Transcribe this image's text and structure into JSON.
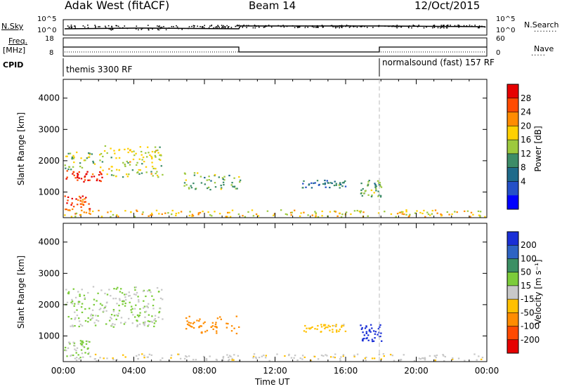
{
  "header": {
    "station": "Adak West (fitACF)",
    "beam": "Beam 14",
    "date": "12/Oct/2015"
  },
  "panels": {
    "nsky": {
      "left_label": "N.Sky",
      "left_top": "10^5",
      "left_bottom": "10^0",
      "right_top": "10^5",
      "right_bottom": "10^0",
      "right_label": "N.Search"
    },
    "freq": {
      "label_top": "Freq.",
      "label_unit": "[MHz]",
      "left_top": "18",
      "left_bottom": "8",
      "right_top": "60",
      "right_bottom": "0",
      "right_label": "Nave"
    },
    "cpid": {
      "label": "CPID",
      "mode1": "themis 3300 RF",
      "mode2": "normalsound (fast) 157 RF"
    }
  },
  "colorbars": {
    "power": {
      "label": "Power [dB]",
      "ticks": [
        "28",
        "24",
        "20",
        "16",
        "12",
        "8",
        "4"
      ],
      "colors": [
        "#e60000",
        "#ff4a00",
        "#ff8c00",
        "#ffd000",
        "#9dc93e",
        "#3d8c68",
        "#1e6a8a",
        "#2450c8",
        "#0000ff"
      ]
    },
    "velocity": {
      "label": "Velocity [m s⁻¹]",
      "ticks": [
        "200",
        "100",
        "50",
        "15",
        "-15",
        "-50",
        "-100",
        "-200"
      ],
      "colors": [
        "#1a2fd6",
        "#2e64c4",
        "#3c8f64",
        "#7ccc3a",
        "#c8c8c8",
        "#ffc000",
        "#ff8c00",
        "#ff4a00",
        "#e60000"
      ]
    }
  },
  "chart_data": [
    {
      "type": "heatmap",
      "name": "power",
      "ylabel": "Slant Range [km]",
      "yticks": [
        "4000",
        "3000",
        "2000",
        "1000"
      ],
      "ylim": [
        180,
        4600
      ],
      "xlim": [
        0,
        24
      ],
      "xticks_hours": [
        0,
        4,
        8,
        12,
        16,
        20,
        24
      ],
      "regions": [
        {
          "t0": 0.0,
          "t1": 2.3,
          "r0": 1350,
          "r1": 1700,
          "v": 28
        },
        {
          "t0": 0.0,
          "t1": 2.3,
          "r0": 1700,
          "r1": 2300,
          "v": 14
        },
        {
          "t0": 2.3,
          "t1": 5.6,
          "r0": 1500,
          "r1": 2500,
          "v": 16
        },
        {
          "t0": 0.0,
          "t1": 1.5,
          "r0": 300,
          "r1": 900,
          "v": 26
        },
        {
          "t0": 6.8,
          "t1": 10.0,
          "r0": 1100,
          "r1": 1650,
          "v": 12
        },
        {
          "t0": 13.5,
          "t1": 16.0,
          "r0": 1150,
          "r1": 1400,
          "v": 8
        },
        {
          "t0": 16.8,
          "t1": 18.0,
          "r0": 850,
          "r1": 1400,
          "v": 12
        },
        {
          "t0": 0.0,
          "t1": 24.0,
          "r0": 180,
          "r1": 450,
          "v": 18
        }
      ]
    },
    {
      "type": "heatmap",
      "name": "velocity",
      "ylabel": "Slant Range [km]",
      "yticks": [
        "4000",
        "3000",
        "2000",
        "1000"
      ],
      "ylim": [
        180,
        4600
      ],
      "xlim": [
        0,
        24
      ],
      "xlabel": "Time UT",
      "xticks": [
        "00:00",
        "04:00",
        "08:00",
        "12:00",
        "16:00",
        "20:00",
        "00:00"
      ],
      "regions": [
        {
          "t0": 0.0,
          "t1": 5.6,
          "r0": 1300,
          "r1": 2600,
          "v": 0
        },
        {
          "t0": 0.0,
          "t1": 1.5,
          "r0": 300,
          "r1": 900,
          "v": 0
        },
        {
          "t0": 6.8,
          "t1": 10.0,
          "r0": 1100,
          "r1": 1650,
          "v": -100
        },
        {
          "t0": 13.5,
          "t1": 16.0,
          "r0": 1150,
          "r1": 1400,
          "v": -50
        },
        {
          "t0": 16.8,
          "t1": 18.0,
          "r0": 850,
          "r1": 1400,
          "v": 200
        },
        {
          "t0": 0.0,
          "t1": 24.0,
          "r0": 180,
          "r1": 450,
          "v": -20
        }
      ]
    }
  ]
}
